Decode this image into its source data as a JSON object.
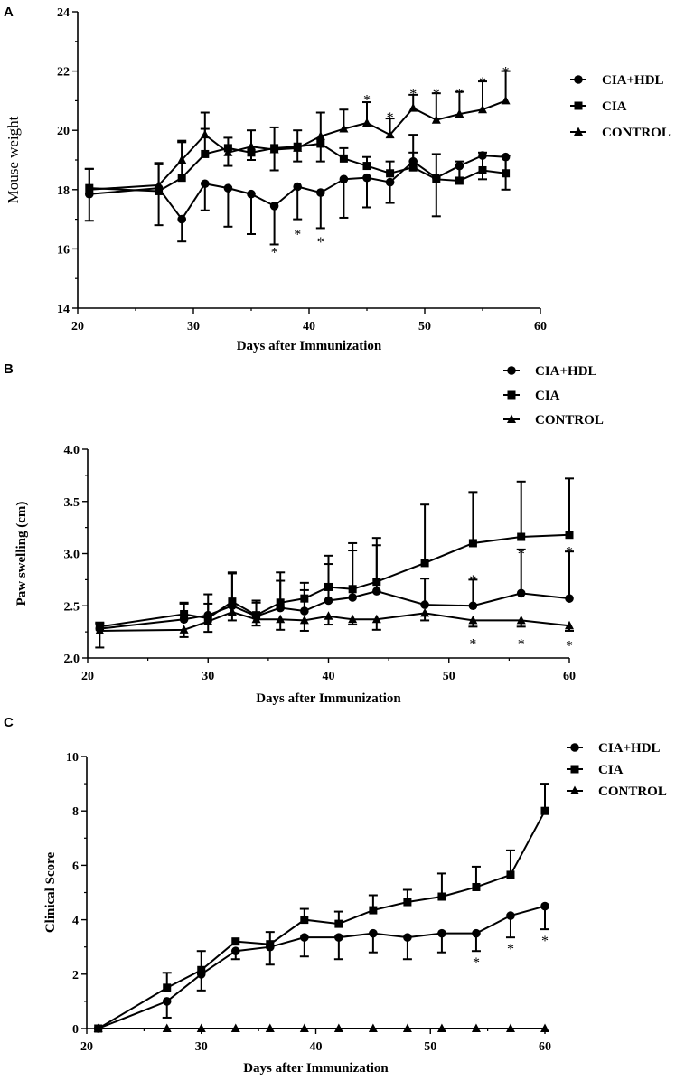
{
  "chart_data": [
    {
      "panel": "A",
      "type": "line",
      "title": "",
      "xlabel": "Days after Immunization",
      "ylabel": "Mouse weight",
      "xlim": [
        20,
        60
      ],
      "ylim": [
        14,
        24
      ],
      "xticks": [
        20,
        30,
        40,
        50,
        60
      ],
      "yticks": [
        14,
        16,
        18,
        20,
        22,
        24
      ],
      "legend": "right",
      "series": [
        {
          "name": "CIA+HDL",
          "marker": "circle",
          "x": [
            21,
            27,
            29,
            31,
            33,
            35,
            37,
            39,
            41,
            43,
            45,
            47,
            49,
            51,
            53,
            55,
            57
          ],
          "y": [
            17.85,
            18.05,
            17.0,
            18.2,
            18.05,
            17.85,
            17.45,
            18.1,
            17.9,
            18.35,
            18.4,
            18.25,
            18.95,
            18.4,
            18.8,
            19.15,
            19.1
          ],
          "err": [
            0.9,
            1.25,
            0.75,
            0.9,
            1.3,
            1.35,
            1.3,
            1.1,
            1.2,
            1.3,
            1.0,
            0.7,
            0.9,
            1.3,
            0.4,
            0.8,
            1.1
          ],
          "err_dir": [
            -1,
            -1,
            -1,
            -1,
            -1,
            -1,
            -1,
            -1,
            -1,
            -1,
            -1,
            -1,
            1,
            -1,
            -1,
            -1,
            -1
          ]
        },
        {
          "name": "CIA",
          "marker": "square",
          "x": [
            21,
            27,
            29,
            31,
            33,
            35,
            37,
            39,
            41,
            43,
            45,
            47,
            49,
            51,
            53,
            55,
            57
          ],
          "y": [
            18.05,
            17.95,
            18.4,
            19.2,
            19.4,
            19.25,
            19.4,
            19.45,
            19.55,
            19.05,
            18.8,
            18.55,
            18.75,
            18.35,
            18.3,
            18.65,
            18.55
          ],
          "err": [
            0.65,
            0.9,
            1.2,
            0.85,
            0.35,
            0.75,
            0.7,
            0.55,
            0.6,
            0.35,
            0.3,
            0.4,
            0.5,
            0.85,
            0.65,
            0.6,
            0.6
          ],
          "err_dir": [
            1,
            1,
            1,
            1,
            1,
            1,
            1,
            1,
            -1,
            1,
            1,
            1,
            1,
            1,
            1,
            1,
            1
          ]
        },
        {
          "name": "CONTROL",
          "marker": "triangle",
          "x": [
            21,
            27,
            29,
            31,
            33,
            35,
            37,
            39,
            41,
            43,
            45,
            47,
            49,
            51,
            53,
            55,
            57
          ],
          "y": [
            18.0,
            18.15,
            19.0,
            19.85,
            19.25,
            19.45,
            19.35,
            19.4,
            19.8,
            20.05,
            20.25,
            19.85,
            20.75,
            20.35,
            20.55,
            20.7,
            21.0
          ],
          "err": [
            0.7,
            0.75,
            0.65,
            0.75,
            0.45,
            0.45,
            0.7,
            0.45,
            0.8,
            0.65,
            0.7,
            0.55,
            0.45,
            0.9,
            0.75,
            0.95,
            1.0
          ],
          "err_dir": [
            1,
            1,
            1,
            1,
            -1,
            -1,
            -1,
            -1,
            1,
            1,
            1,
            1,
            1,
            1,
            1,
            1,
            1
          ]
        }
      ],
      "annotations": [
        {
          "text": "*",
          "x": 37,
          "y": 16.0
        },
        {
          "text": "*",
          "x": 39,
          "y": 16.6
        },
        {
          "text": "*",
          "x": 41,
          "y": 16.35
        },
        {
          "text": "*",
          "x": 45,
          "y": 21.15
        },
        {
          "text": "*",
          "x": 47,
          "y": 20.55
        },
        {
          "text": "*",
          "x": 49,
          "y": 21.35
        },
        {
          "text": "*",
          "x": 51,
          "y": 21.35
        },
        {
          "text": "*",
          "x": 53,
          "y": 21.35
        },
        {
          "text": "*",
          "x": 55,
          "y": 21.75
        },
        {
          "text": "*",
          "x": 57,
          "y": 22.1
        }
      ]
    },
    {
      "panel": "B",
      "type": "line",
      "title": "",
      "xlabel": "Days after Immunization",
      "ylabel": "Paw swelling (cm)",
      "xlim": [
        20,
        60
      ],
      "ylim": [
        2.0,
        4.0
      ],
      "xticks": [
        20,
        30,
        40,
        50,
        60
      ],
      "yticks": [
        2.0,
        2.5,
        3.0,
        3.5,
        4.0
      ],
      "ytick_labels": [
        "2.0",
        "2.5",
        "3.0",
        "3.5",
        "4.0"
      ],
      "legend": "top-right",
      "series": [
        {
          "name": "CIA+HDL",
          "marker": "circle",
          "x": [
            21,
            28,
            30,
            32,
            34,
            36,
            38,
            40,
            42,
            44,
            48,
            52,
            56,
            60
          ],
          "y": [
            2.28,
            2.37,
            2.41,
            2.5,
            2.4,
            2.48,
            2.45,
            2.55,
            2.58,
            2.64,
            2.51,
            2.5,
            2.62,
            2.57
          ],
          "err": [
            0.05,
            0.15,
            0.2,
            0.32,
            0.13,
            0.26,
            0.2,
            0.35,
            0.45,
            0.44,
            0.25,
            0.25,
            0.42,
            0.45
          ],
          "err_dir": [
            1,
            1,
            1,
            1,
            1,
            1,
            1,
            1,
            1,
            1,
            1,
            1,
            1,
            1
          ]
        },
        {
          "name": "CIA",
          "marker": "square",
          "x": [
            21,
            28,
            30,
            32,
            34,
            36,
            38,
            40,
            42,
            44,
            48,
            52,
            56,
            60
          ],
          "y": [
            2.3,
            2.42,
            2.38,
            2.54,
            2.41,
            2.53,
            2.57,
            2.68,
            2.66,
            2.73,
            2.91,
            3.1,
            3.16,
            3.18
          ],
          "err": [
            0.04,
            0.11,
            0.14,
            0.27,
            0.14,
            0.29,
            0.15,
            0.3,
            0.44,
            0.42,
            0.56,
            0.49,
            0.53,
            0.54
          ],
          "err_dir": [
            1,
            1,
            1,
            1,
            1,
            1,
            1,
            1,
            1,
            1,
            1,
            1,
            1,
            1
          ]
        },
        {
          "name": "CONTROL",
          "marker": "triangle",
          "x": [
            21,
            28,
            30,
            32,
            34,
            36,
            38,
            40,
            42,
            44,
            48,
            52,
            56,
            60
          ],
          "y": [
            2.26,
            2.27,
            2.35,
            2.44,
            2.37,
            2.37,
            2.36,
            2.4,
            2.37,
            2.37,
            2.43,
            2.36,
            2.36,
            2.31
          ],
          "err": [
            0.16,
            0.07,
            0.1,
            0.08,
            0.06,
            0.1,
            0.1,
            0.08,
            0.05,
            0.1,
            0.07,
            0.06,
            0.06,
            0.05
          ],
          "err_dir": [
            -1,
            -1,
            -1,
            -1,
            -1,
            -1,
            -1,
            -1,
            -1,
            -1,
            -1,
            -1,
            -1,
            -1
          ]
        }
      ],
      "annotations": [
        {
          "text": "*",
          "x": 52,
          "y": 2.78
        },
        {
          "text": "*",
          "x": 56,
          "y": 3.03
        },
        {
          "text": "*",
          "x": 60,
          "y": 3.05
        },
        {
          "text": "*",
          "x": 52,
          "y": 2.17
        },
        {
          "text": "*",
          "x": 56,
          "y": 2.17
        },
        {
          "text": "*",
          "x": 60,
          "y": 2.15
        }
      ]
    },
    {
      "panel": "C",
      "type": "line",
      "title": "",
      "xlabel": "Days after Immunization",
      "ylabel": "Clinical Score",
      "xlim": [
        20,
        60
      ],
      "ylim": [
        0,
        10
      ],
      "xticks": [
        20,
        30,
        40,
        50,
        60
      ],
      "yticks": [
        0,
        2,
        4,
        6,
        8,
        10
      ],
      "legend": "top-right",
      "series": [
        {
          "name": "CIA+HDL",
          "marker": "circle",
          "x": [
            21,
            27,
            30,
            33,
            36,
            39,
            42,
            45,
            48,
            51,
            54,
            57,
            60
          ],
          "y": [
            0,
            1.0,
            2.0,
            2.85,
            3.0,
            3.35,
            3.35,
            3.5,
            3.35,
            3.5,
            3.5,
            4.15,
            4.5
          ],
          "err": [
            0,
            0.6,
            0.6,
            0.3,
            0.65,
            0.7,
            0.8,
            0.7,
            0.8,
            0.7,
            0.65,
            0.8,
            0.85
          ],
          "err_dir": [
            -1,
            -1,
            -1,
            -1,
            -1,
            -1,
            -1,
            -1,
            -1,
            -1,
            -1,
            -1,
            -1
          ]
        },
        {
          "name": "CIA",
          "marker": "square",
          "x": [
            21,
            27,
            30,
            33,
            36,
            39,
            42,
            45,
            48,
            51,
            54,
            57,
            60
          ],
          "y": [
            0,
            1.5,
            2.15,
            3.2,
            3.1,
            4.0,
            3.85,
            4.35,
            4.65,
            4.85,
            5.2,
            5.65,
            8.0
          ],
          "err": [
            0,
            0.55,
            0.7,
            0.0,
            0.45,
            0.4,
            0.45,
            0.55,
            0.45,
            0.85,
            0.75,
            0.9,
            1.0
          ],
          "err_dir": [
            1,
            1,
            1,
            1,
            1,
            1,
            1,
            1,
            1,
            1,
            1,
            1,
            1
          ]
        },
        {
          "name": "CONTROL",
          "marker": "triangle",
          "x": [
            21,
            27,
            30,
            33,
            36,
            39,
            42,
            45,
            48,
            51,
            54,
            57,
            60
          ],
          "y": [
            0,
            0,
            0,
            0,
            0,
            0,
            0,
            0,
            0,
            0,
            0,
            0,
            0
          ],
          "err": [
            0,
            0,
            0,
            0,
            0,
            0,
            0,
            0,
            0,
            0,
            0,
            0,
            0
          ],
          "err_dir": [
            1,
            1,
            1,
            1,
            1,
            1,
            1,
            1,
            1,
            1,
            1,
            1,
            1
          ]
        }
      ],
      "annotations": [
        {
          "text": "*",
          "x": 54,
          "y": 2.55
        },
        {
          "text": "*",
          "x": 57,
          "y": 3.05
        },
        {
          "text": "*",
          "x": 60,
          "y": 3.35
        }
      ]
    }
  ]
}
